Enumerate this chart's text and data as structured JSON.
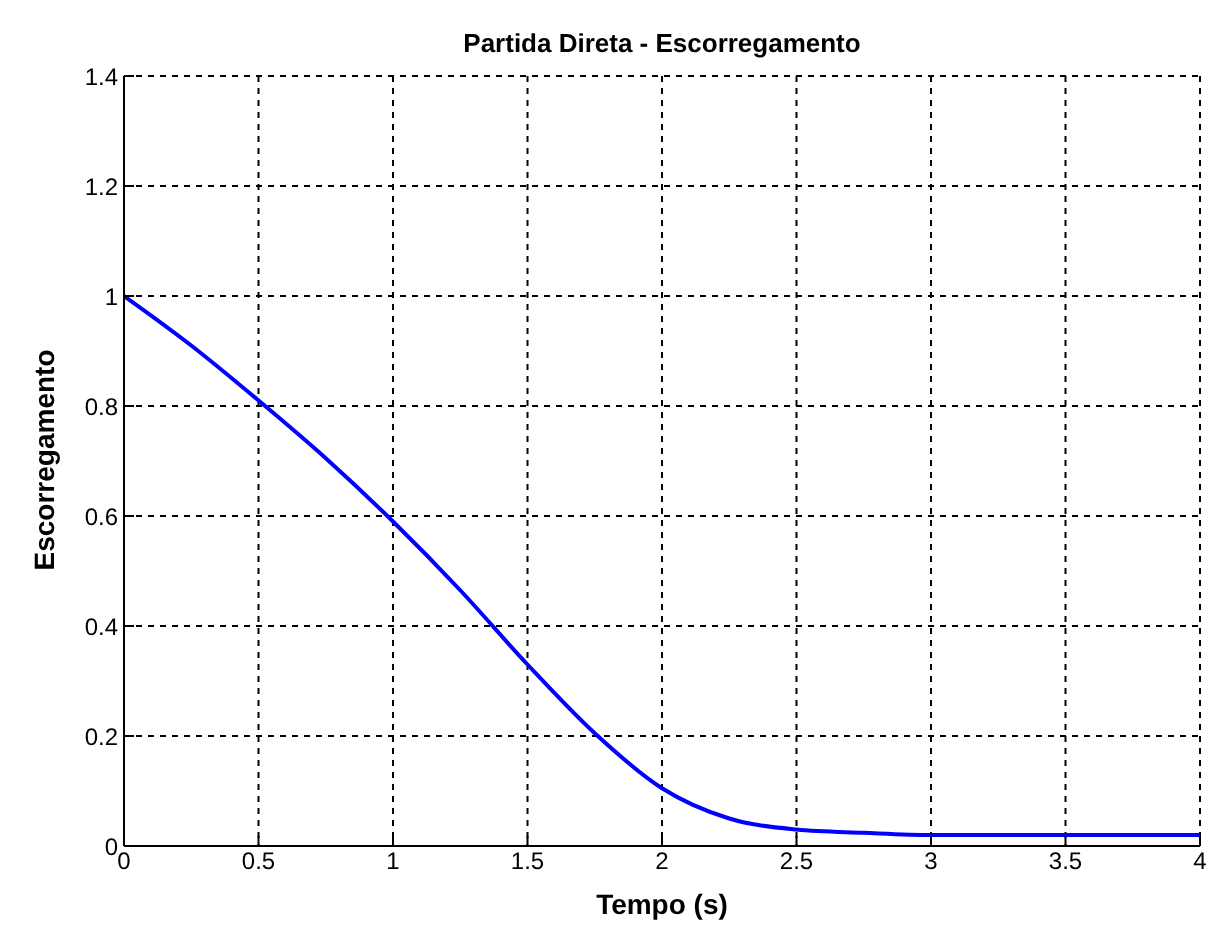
{
  "chart_data": {
    "type": "line",
    "title": "Partida Direta - Escorregamento",
    "xlabel": "Tempo (s)",
    "ylabel": "Escorregamento",
    "x": [
      0,
      0.25,
      0.5,
      0.75,
      1,
      1.25,
      1.5,
      1.75,
      2,
      2.25,
      2.5,
      2.75,
      3,
      3.5,
      4
    ],
    "series": [
      {
        "color": "#0000ff",
        "values": [
          1,
          0.91,
          0.81,
          0.705,
          0.59,
          0.465,
          0.33,
          0.205,
          0.105,
          0.05,
          0.03,
          0.024,
          0.02,
          0.02,
          0.02
        ]
      }
    ],
    "xlim": [
      0,
      4
    ],
    "xticks": [
      0,
      0.5,
      1,
      1.5,
      2,
      2.5,
      3,
      3.5,
      4
    ],
    "ylim": [
      0,
      1.4
    ],
    "yticks": [
      0,
      0.2,
      0.4,
      0.6,
      0.8,
      1,
      1.2,
      1.4
    ],
    "grid": true,
    "marker": "none",
    "line_style": "solid"
  }
}
